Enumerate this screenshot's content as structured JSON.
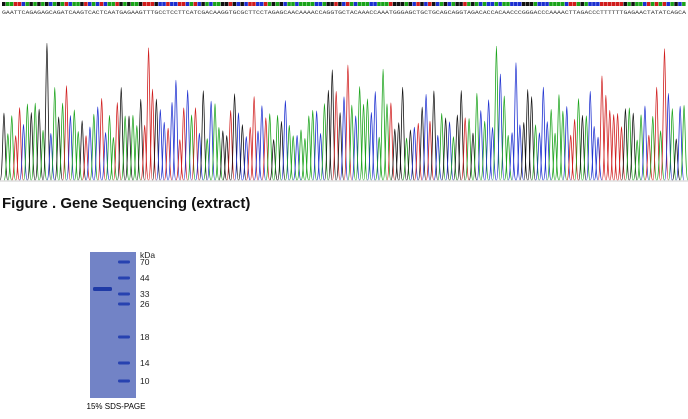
{
  "sequence": "GAATTCAGAGAGCAGATCAAGTCACTCAATGAGAAGTTTGCCTCCTTCATCGACAAGGTGCGCTTCCTAGAGCAACAAAACCAGGTGCTACAAACCAAATGGGAGCTGCTGCAGCAGGTAGACACCACAACCCGGGACCCAAAACTTAGACCCTTTTTTGAGAACTATATCAGCA",
  "caption": "Figure . Gene Sequencing (extract)",
  "gel": {
    "unit": "kDa",
    "markers": [
      "70",
      "44",
      "33",
      "26",
      "18",
      "14",
      "10"
    ],
    "label": "15% SDS-PAGE"
  }
}
